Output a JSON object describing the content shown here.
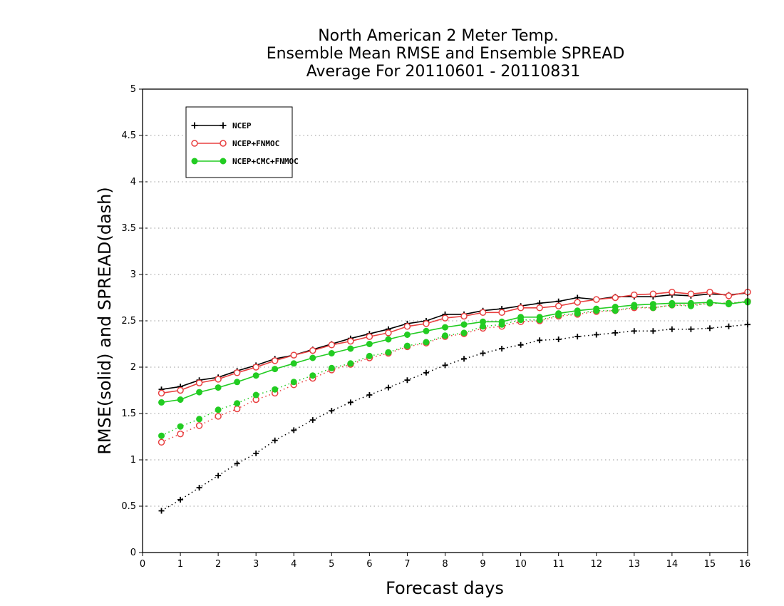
{
  "chart_data": {
    "type": "line",
    "title": [
      "North American 2 Meter Temp.",
      "Ensemble Mean RMSE and Ensemble SPREAD",
      "Average For 20110601 - 20110831"
    ],
    "xlabel": "Forecast days",
    "ylabel": "RMSE(solid) and SPREAD(dash)",
    "xlim": [
      0,
      16
    ],
    "ylim": [
      0,
      5
    ],
    "xticks": [
      "0",
      "1",
      "2",
      "3",
      "4",
      "5",
      "6",
      "7",
      "8",
      "9",
      "10",
      "11",
      "12",
      "13",
      "14",
      "15",
      "16"
    ],
    "yticks": [
      "0",
      "0.5",
      "1",
      "1.5",
      "2",
      "2.5",
      "3",
      "3.5",
      "4",
      "4.5",
      "5"
    ],
    "grid": "horizontal-dotted",
    "legend_position": "top-left",
    "x": [
      0.5,
      1.0,
      1.5,
      2.0,
      2.5,
      3.0,
      3.5,
      4.0,
      4.5,
      5.0,
      5.5,
      6.0,
      6.5,
      7.0,
      7.5,
      8.0,
      8.5,
      9.0,
      9.5,
      10.0,
      10.5,
      11.0,
      11.5,
      12.0,
      12.5,
      13.0,
      13.5,
      14.0,
      14.5,
      15.0,
      15.5,
      16.0
    ],
    "series": [
      {
        "name": "NCEP",
        "color": "#000000",
        "marker": "plus",
        "rmse": [
          1.76,
          1.79,
          1.86,
          1.89,
          1.96,
          2.02,
          2.09,
          2.13,
          2.19,
          2.25,
          2.31,
          2.36,
          2.41,
          2.47,
          2.5,
          2.57,
          2.57,
          2.61,
          2.63,
          2.66,
          2.69,
          2.71,
          2.75,
          2.73,
          2.76,
          2.76,
          2.76,
          2.78,
          2.77,
          2.79,
          2.78,
          2.8
        ],
        "spread": [
          0.45,
          0.57,
          0.7,
          0.83,
          0.96,
          1.07,
          1.21,
          1.32,
          1.43,
          1.53,
          1.62,
          1.7,
          1.78,
          1.86,
          1.94,
          2.02,
          2.09,
          2.15,
          2.2,
          2.24,
          2.29,
          2.3,
          2.33,
          2.35,
          2.37,
          2.39,
          2.39,
          2.41,
          2.41,
          2.42,
          2.44,
          2.46
        ]
      },
      {
        "name": "NCEP+FNMOC",
        "color": "#e84040",
        "marker": "open-circle",
        "rmse": [
          1.72,
          1.75,
          1.83,
          1.87,
          1.94,
          2.0,
          2.07,
          2.13,
          2.18,
          2.24,
          2.28,
          2.33,
          2.37,
          2.44,
          2.47,
          2.53,
          2.55,
          2.59,
          2.59,
          2.64,
          2.64,
          2.66,
          2.7,
          2.73,
          2.75,
          2.78,
          2.79,
          2.81,
          2.79,
          2.81,
          2.77,
          2.81
        ],
        "spread": [
          1.19,
          1.28,
          1.37,
          1.47,
          1.55,
          1.65,
          1.72,
          1.81,
          1.88,
          1.97,
          2.03,
          2.1,
          2.15,
          2.22,
          2.26,
          2.33,
          2.36,
          2.42,
          2.44,
          2.49,
          2.5,
          2.55,
          2.57,
          2.6,
          2.61,
          2.64,
          2.64,
          2.67,
          2.67,
          2.69,
          2.69,
          2.71
        ]
      },
      {
        "name": "NCEP+CMC+FNMOC",
        "color": "#22cc22",
        "marker": "filled-circle",
        "rmse": [
          1.62,
          1.65,
          1.73,
          1.78,
          1.84,
          1.91,
          1.98,
          2.04,
          2.1,
          2.15,
          2.2,
          2.25,
          2.3,
          2.35,
          2.39,
          2.43,
          2.46,
          2.49,
          2.49,
          2.54,
          2.54,
          2.58,
          2.61,
          2.63,
          2.65,
          2.67,
          2.68,
          2.69,
          2.69,
          2.7,
          2.68,
          2.71
        ],
        "spread": [
          1.26,
          1.36,
          1.44,
          1.54,
          1.61,
          1.7,
          1.76,
          1.84,
          1.91,
          1.99,
          2.04,
          2.12,
          2.16,
          2.23,
          2.27,
          2.34,
          2.37,
          2.44,
          2.46,
          2.51,
          2.51,
          2.56,
          2.58,
          2.61,
          2.61,
          2.65,
          2.64,
          2.67,
          2.66,
          2.69,
          2.69,
          2.7
        ]
      }
    ]
  }
}
